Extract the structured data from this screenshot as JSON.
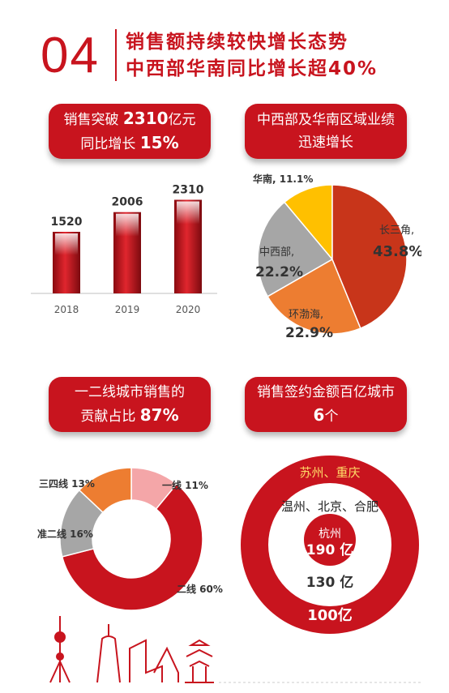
{
  "header": {
    "number": "04",
    "title_line1": "销售额持续较快增长态势",
    "title_line2": "中西部华南同比增长超40%"
  },
  "panels": {
    "sales": {
      "prefix": "销售突破 ",
      "value": "2310",
      "suffix": "亿元",
      "line2_prefix": "同比增长 ",
      "line2_value": "15%"
    },
    "region": {
      "line1": "中西部及华南区域业绩",
      "line2": "迅速增长"
    },
    "tier": {
      "line1": "一二线城市销售的",
      "line2_prefix": "贡献占比 ",
      "line2_value": "87%"
    },
    "cities": {
      "line1": "销售签约金额百亿城市",
      "line2_value": "6",
      "line2_suffix": "个"
    }
  },
  "colors": {
    "brand_red": "#c8141e"
  },
  "chart_data": [
    {
      "type": "bar",
      "categories": [
        "2018",
        "2019",
        "2020"
      ],
      "values": [
        1520,
        2006,
        2310
      ],
      "data_labels": [
        "1520",
        "2006",
        "2310"
      ],
      "ylim": [
        0,
        2400
      ]
    },
    {
      "type": "pie",
      "slices": [
        {
          "name": "长三角",
          "value": 43.8,
          "label": "43.8%",
          "color": "#c8351a"
        },
        {
          "name": "环渤海",
          "value": 22.9,
          "label": "22.9%",
          "color": "#ed7d31"
        },
        {
          "name": "中西部",
          "value": 22.2,
          "label": "22.2%",
          "color": "#a6a6a6"
        },
        {
          "name": "华南",
          "value": 11.1,
          "label": "11.1%",
          "color": "#ffc000"
        }
      ],
      "label_texts": {
        "cj": "长三角,",
        "cj_pct": "43.8%",
        "hb": "环渤海,",
        "hb_pct": "22.9%",
        "zx": "中西部,",
        "zx_pct": "22.2%",
        "hn": "华南, 11.1%"
      }
    },
    {
      "type": "pie",
      "style": "donut",
      "slices": [
        {
          "name": "一线",
          "value": 11,
          "label": "一线 11%",
          "color": "#f4a6a8"
        },
        {
          "name": "二线",
          "value": 60,
          "label": "二线 60%",
          "color": "#c8141e"
        },
        {
          "name": "准二线",
          "value": 16,
          "label": "准二线 16%",
          "color": "#a6a6a6"
        },
        {
          "name": "三四线",
          "value": 13,
          "label": "三四线 13%",
          "color": "#ed7d31"
        }
      ]
    },
    {
      "type": "table",
      "style": "concentric-rings",
      "tiers": [
        {
          "amount": "100亿",
          "cities": "苏州、重庆"
        },
        {
          "amount": "130 亿",
          "cities": "温州、北京、合肥"
        },
        {
          "amount": "190 亿",
          "cities": "杭州"
        }
      ]
    }
  ]
}
